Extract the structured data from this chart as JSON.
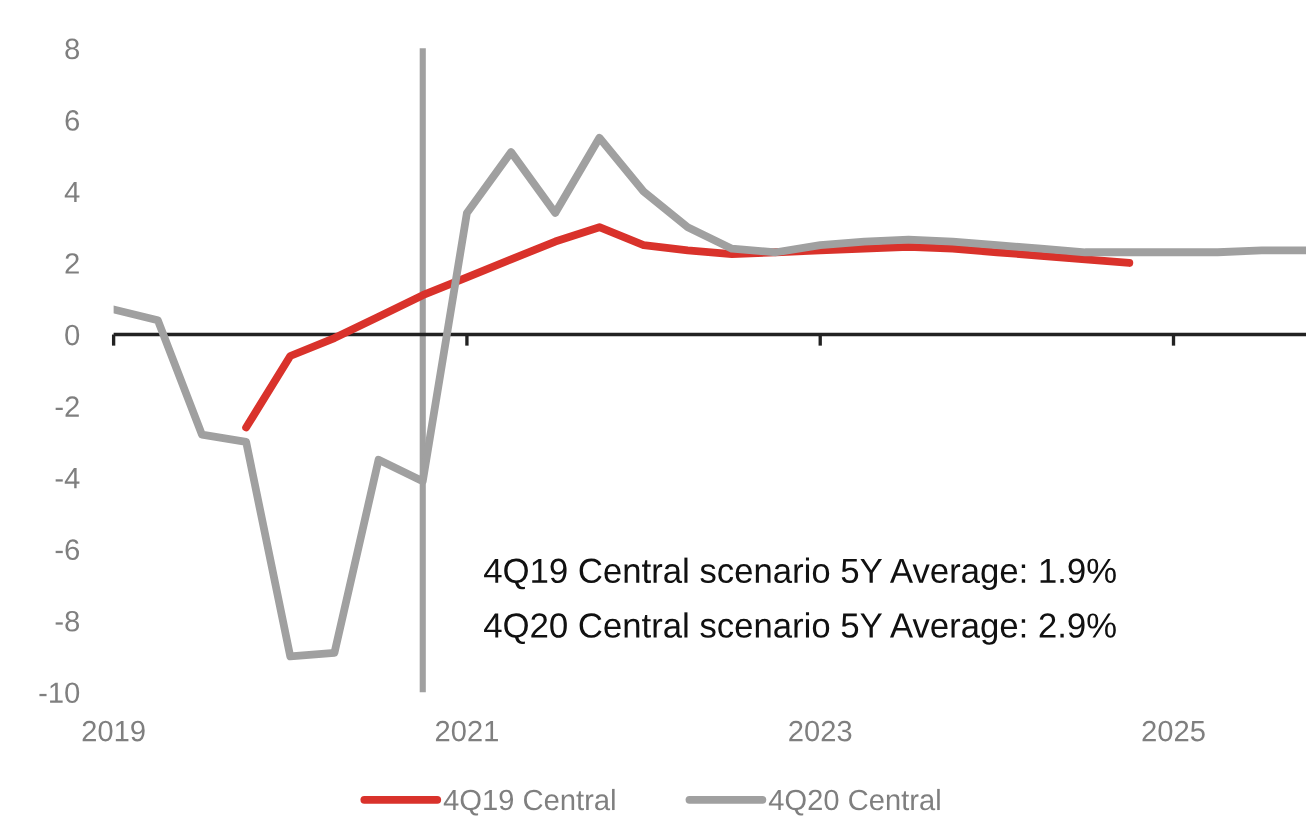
{
  "chart_data": {
    "type": "line",
    "series": [
      {
        "name": "4Q19 Central",
        "color": "#d9322b",
        "x": [
          2019.75,
          2020.0,
          2020.25,
          2020.5,
          2020.75,
          2021.0,
          2021.25,
          2021.5,
          2021.75,
          2022.0,
          2022.25,
          2022.5,
          2022.75,
          2023.0,
          2023.25,
          2023.5,
          2023.75,
          2024.0,
          2024.25,
          2024.5,
          2024.75
        ],
        "values": [
          -2.6,
          -0.6,
          -0.1,
          0.5,
          1.1,
          1.6,
          2.1,
          2.6,
          3.0,
          2.5,
          2.35,
          2.25,
          2.3,
          2.35,
          2.4,
          2.45,
          2.4,
          2.3,
          2.2,
          2.1,
          2.0
        ]
      },
      {
        "name": "4Q20 Central",
        "color": "#a0a0a0",
        "x": [
          2019.0,
          2019.25,
          2019.5,
          2019.75,
          2020.0,
          2020.25,
          2020.5,
          2020.75,
          2021.0,
          2021.25,
          2021.5,
          2021.75,
          2022.0,
          2022.25,
          2022.5,
          2022.75,
          2023.0,
          2023.25,
          2023.5,
          2023.75,
          2024.0,
          2024.25,
          2024.5,
          2024.75,
          2025.0,
          2025.25,
          2025.5,
          2025.75
        ],
        "values": [
          0.7,
          0.4,
          -2.8,
          -3.0,
          -9.0,
          -8.9,
          -3.5,
          -4.1,
          3.4,
          5.1,
          3.4,
          5.5,
          4.0,
          3.0,
          2.4,
          2.3,
          2.5,
          2.6,
          2.65,
          2.6,
          2.5,
          2.4,
          2.3,
          2.3,
          2.3,
          2.3,
          2.35,
          2.35
        ]
      }
    ],
    "xlim": [
      2019,
      2025.75
    ],
    "xticks": [
      2019,
      2021,
      2023,
      2025
    ],
    "ylim": [
      -10,
      8
    ],
    "yticks": [
      -10,
      -8,
      -6,
      -4,
      -2,
      0,
      2,
      4,
      6,
      8
    ],
    "ref_lines": [
      {
        "axis": "x",
        "value": 2020.75,
        "label": null,
        "color": "#a0a0a0"
      },
      {
        "axis": "y",
        "value": 0,
        "label": null,
        "color": "#222222"
      }
    ],
    "annotations": [
      "4Q19 Central scenario 5Y Average: 1.9%",
      "4Q20 Central scenario 5Y Average: 2.9%"
    ],
    "legend": "bottom",
    "marker": "none",
    "line_style": "solid"
  }
}
